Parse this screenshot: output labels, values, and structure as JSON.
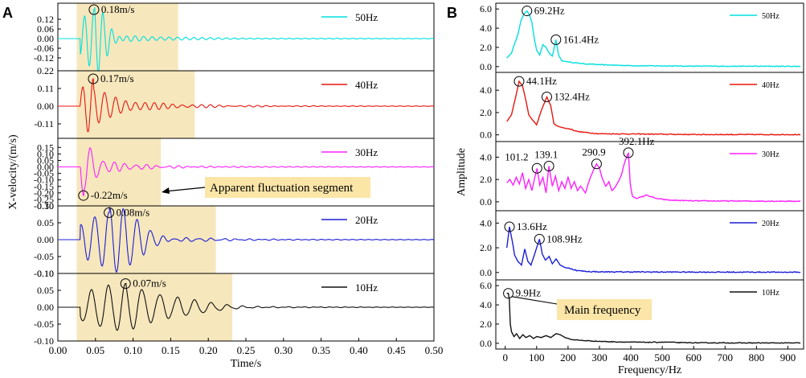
{
  "figure": {
    "panel_a_letter": "A",
    "panel_b_letter": "B"
  },
  "colors": {
    "50Hz": "#00e0e0",
    "40Hz": "#e8170f",
    "30Hz": "#ff20ff",
    "20Hz": "#1d1fd6",
    "10Hz": "#111111",
    "highlight": "#f6e7bd",
    "callout_fill": "#fbe6a8"
  },
  "chart_data": [
    {
      "type": "line",
      "panel": "A",
      "xlabel": "Time/s",
      "ylabel": "X-velocity/(m/s)",
      "xlim": [
        0.0,
        0.5
      ],
      "xticks": [
        "0.00",
        "0.05",
        "0.10",
        "0.15",
        "0.20",
        "0.25",
        "0.30",
        "0.35",
        "0.40",
        "0.45",
        "0.50"
      ],
      "callout": {
        "text": "Apparent fluctuation segment"
      },
      "subplots": [
        {
          "name": "50Hz",
          "legend": "50Hz",
          "ylim": [
            -0.2,
            0.22
          ],
          "yticks": [
            "0.12",
            "0.06",
            "0.00",
            "-0.06",
            "-0.12"
          ],
          "highlight_range": [
            0.025,
            0.16
          ],
          "peak": {
            "t": 0.048,
            "v": 0.18,
            "label": "0.18m/s"
          },
          "oscillation_end": 0.15
        },
        {
          "name": "40Hz",
          "legend": "40Hz",
          "ylim": [
            -0.2,
            0.22
          ],
          "yticks": [
            "0.22",
            "0.11",
            "0.00",
            "-0.11"
          ],
          "highlight_range": [
            0.025,
            0.182
          ],
          "peak": {
            "t": 0.047,
            "v": 0.17,
            "label": "0.17m/s"
          },
          "oscillation_end": 0.19
        },
        {
          "name": "30Hz",
          "legend": "30Hz",
          "ylim": [
            -0.3,
            0.22
          ],
          "yticks": [
            "0.15",
            "0.10",
            "0.05",
            "0.00",
            "-0.05",
            "-0.10",
            "-0.15",
            "-0.20",
            "-0.25",
            "-0.30"
          ],
          "highlight_range": [
            0.025,
            0.137
          ],
          "peak": {
            "t": 0.034,
            "v": -0.22,
            "label": "-0.22m/s"
          },
          "oscillation_end": 0.13
        },
        {
          "name": "20Hz",
          "legend": "20Hz",
          "ylim": [
            -0.1,
            0.1
          ],
          "yticks": [
            "0.10",
            "0.05",
            "0.00",
            "-0.05",
            "-0.10"
          ],
          "highlight_range": [
            0.025,
            0.21
          ],
          "peak": {
            "t": 0.068,
            "v": 0.08,
            "label": "0.08m/s"
          },
          "oscillation_end": 0.2
        },
        {
          "name": "10Hz",
          "legend": "10Hz",
          "ylim": [
            -0.1,
            0.1
          ],
          "yticks": [
            "0.10",
            "0.05",
            "0.00",
            "-0.05",
            "-0.10"
          ],
          "highlight_range": [
            0.025,
            0.232
          ],
          "peak": {
            "t": 0.09,
            "v": 0.07,
            "label": "0.07m/s"
          },
          "oscillation_end": 0.23
        }
      ]
    },
    {
      "type": "line",
      "panel": "B",
      "xlabel": "Frequency/Hz",
      "ylabel": "Amplitude",
      "xlim": [
        -30,
        950
      ],
      "xticks": [
        "0",
        "100",
        "200",
        "300",
        "400",
        "500",
        "600",
        "700",
        "800",
        "900"
      ],
      "callout": {
        "text": "Main frequency"
      },
      "subplots": [
        {
          "name": "50Hz",
          "legend": "50Hz",
          "ylim": [
            -0.6,
            6.6
          ],
          "yticks": [
            "6.0",
            "4.0",
            "2.0",
            "0.0"
          ],
          "series": [
            [
              5,
              0.9
            ],
            [
              20,
              1.4
            ],
            [
              30,
              2.4
            ],
            [
              40,
              3.3
            ],
            [
              50,
              4.8
            ],
            [
              60,
              5.5
            ],
            [
              69.2,
              5.8
            ],
            [
              78,
              5.3
            ],
            [
              85,
              4.6
            ],
            [
              92,
              3.0
            ],
            [
              100,
              1.7
            ],
            [
              110,
              1.2
            ],
            [
              120,
              2.3
            ],
            [
              130,
              2.0
            ],
            [
              140,
              1.4
            ],
            [
              150,
              1.1
            ],
            [
              161.4,
              2.8
            ],
            [
              170,
              1.2
            ],
            [
              180,
              0.6
            ],
            [
              200,
              0.5
            ],
            [
              220,
              0.4
            ],
            [
              250,
              0.3
            ],
            [
              300,
              0.2
            ],
            [
              400,
              0.1
            ],
            [
              600,
              0.05
            ],
            [
              940,
              0.03
            ]
          ],
          "peaks": [
            {
              "f": 69.2,
              "a": 5.8,
              "label": "69.2Hz"
            },
            {
              "f": 161.4,
              "a": 2.8,
              "label": "161.4Hz"
            }
          ]
        },
        {
          "name": "40Hz",
          "legend": "40Hz",
          "ylim": [
            -0.6,
            5.6
          ],
          "yticks": [
            "4.0",
            "2.0",
            "0.0"
          ],
          "series": [
            [
              5,
              1.2
            ],
            [
              20,
              1.8
            ],
            [
              30,
              3.0
            ],
            [
              44.1,
              4.8
            ],
            [
              55,
              4.4
            ],
            [
              65,
              3.2
            ],
            [
              75,
              1.8
            ],
            [
              85,
              1.4
            ],
            [
              100,
              0.9
            ],
            [
              115,
              2.2
            ],
            [
              132.4,
              3.4
            ],
            [
              145,
              2.6
            ],
            [
              155,
              1.0
            ],
            [
              165,
              0.8
            ],
            [
              175,
              0.7
            ],
            [
              190,
              0.6
            ],
            [
              210,
              0.5
            ],
            [
              230,
              0.3
            ],
            [
              260,
              0.2
            ],
            [
              300,
              0.1
            ],
            [
              400,
              0.08
            ],
            [
              600,
              0.03
            ],
            [
              940,
              0.02
            ]
          ],
          "peaks": [
            {
              "f": 44.1,
              "a": 4.8,
              "label": "44.1Hz"
            },
            {
              "f": 132.4,
              "a": 3.4,
              "label": "132.4Hz"
            }
          ]
        },
        {
          "name": "30Hz",
          "legend": "30Hz",
          "ylim": [
            -0.8,
            5.4
          ],
          "yticks": [
            "4.0",
            "2.0",
            "0.0"
          ],
          "series": [
            [
              5,
              1.7
            ],
            [
              15,
              2.0
            ],
            [
              25,
              1.5
            ],
            [
              35,
              2.2
            ],
            [
              45,
              1.6
            ],
            [
              55,
              2.6
            ],
            [
              65,
              1.2
            ],
            [
              75,
              2.0
            ],
            [
              85,
              1.0
            ],
            [
              95,
              2.3
            ],
            [
              101.2,
              3.0
            ],
            [
              110,
              1.5
            ],
            [
              120,
              2.2
            ],
            [
              130,
              0.8
            ],
            [
              139.1,
              3.2
            ],
            [
              150,
              1.4
            ],
            [
              160,
              2.3
            ],
            [
              170,
              1.0
            ],
            [
              180,
              1.8
            ],
            [
              190,
              1.2
            ],
            [
              200,
              2.2
            ],
            [
              210,
              1.2
            ],
            [
              220,
              1.8
            ],
            [
              230,
              1.0
            ],
            [
              240,
              1.4
            ],
            [
              255,
              0.8
            ],
            [
              270,
              2.1
            ],
            [
              280,
              2.8
            ],
            [
              290.9,
              3.4
            ],
            [
              300,
              3.0
            ],
            [
              310,
              2.0
            ],
            [
              320,
              1.4
            ],
            [
              330,
              1.8
            ],
            [
              340,
              1.0
            ],
            [
              350,
              1.3
            ],
            [
              360,
              1.8
            ],
            [
              370,
              2.4
            ],
            [
              380,
              3.5
            ],
            [
              392.1,
              4.4
            ],
            [
              398,
              1.6
            ],
            [
              405,
              0.5
            ],
            [
              420,
              0.3
            ],
            [
              450,
              0.6
            ],
            [
              480,
              0.3
            ],
            [
              520,
              0.15
            ],
            [
              600,
              0.08
            ],
            [
              940,
              0.05
            ]
          ],
          "peaks": [
            {
              "f": 101.2,
              "a": 3.0,
              "label": "101.2"
            },
            {
              "f": 139.1,
              "a": 3.2,
              "label": "139.1"
            },
            {
              "f": 290.9,
              "a": 3.4,
              "label": "290.9"
            },
            {
              "f": 392.1,
              "a": 4.4,
              "label": "392.1Hz"
            }
          ]
        },
        {
          "name": "20Hz",
          "legend": "20Hz",
          "ylim": [
            -0.6,
            5.0
          ],
          "yticks": [
            "4.0",
            "2.0",
            "0.0"
          ],
          "series": [
            [
              5,
              2.0
            ],
            [
              13.6,
              3.7
            ],
            [
              22,
              2.6
            ],
            [
              30,
              1.4
            ],
            [
              40,
              0.9
            ],
            [
              52,
              0.6
            ],
            [
              62,
              1.9
            ],
            [
              72,
              0.9
            ],
            [
              82,
              0.6
            ],
            [
              95,
              1.6
            ],
            [
              108.9,
              2.7
            ],
            [
              118,
              1.5
            ],
            [
              128,
              1.0
            ],
            [
              140,
              1.3
            ],
            [
              150,
              0.7
            ],
            [
              162,
              1.1
            ],
            [
              175,
              0.6
            ],
            [
              190,
              0.4
            ],
            [
              210,
              0.3
            ],
            [
              230,
              0.15
            ],
            [
              260,
              0.08
            ],
            [
              300,
              0.05
            ],
            [
              600,
              0.03
            ],
            [
              940,
              0.02
            ]
          ],
          "peaks": [
            {
              "f": 13.6,
              "a": 3.7,
              "label": "13.6Hz"
            },
            {
              "f": 108.9,
              "a": 2.7,
              "label": "108.9Hz"
            }
          ]
        },
        {
          "name": "10Hz",
          "legend": "10Hz",
          "ylim": [
            -0.6,
            6.6
          ],
          "yticks": [
            "6.0",
            "4.0",
            "2.0",
            "0.0"
          ],
          "series": [
            [
              5,
              5.2
            ],
            [
              9.9,
              5.2
            ],
            [
              13,
              4.6
            ],
            [
              16,
              2.0
            ],
            [
              20,
              1.2
            ],
            [
              28,
              0.7
            ],
            [
              36,
              1.0
            ],
            [
              46,
              0.5
            ],
            [
              56,
              0.9
            ],
            [
              66,
              0.6
            ],
            [
              78,
              0.8
            ],
            [
              90,
              0.5
            ],
            [
              100,
              0.7
            ],
            [
              115,
              0.6
            ],
            [
              130,
              0.8
            ],
            [
              145,
              0.6
            ],
            [
              162,
              1.0
            ],
            [
              175,
              0.9
            ],
            [
              190,
              0.6
            ],
            [
              210,
              0.4
            ],
            [
              240,
              0.3
            ],
            [
              270,
              0.25
            ],
            [
              300,
              0.2
            ],
            [
              350,
              0.15
            ],
            [
              400,
              0.12
            ],
            [
              450,
              0.1
            ],
            [
              520,
              0.12
            ],
            [
              560,
              0.06
            ],
            [
              700,
              0.04
            ],
            [
              940,
              0.03
            ]
          ],
          "peaks": [
            {
              "f": 9.9,
              "a": 5.2,
              "label": "9.9Hz"
            }
          ]
        }
      ]
    }
  ]
}
